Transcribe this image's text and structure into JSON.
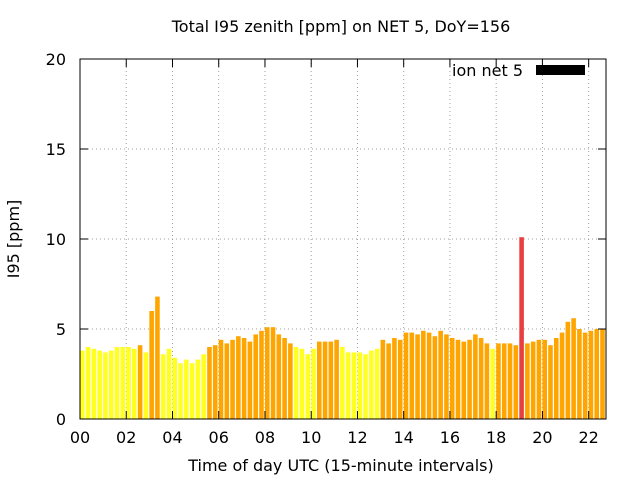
{
  "chart_data": {
    "type": "bar",
    "title": "Total I95 zenith [ppm] on NET 5, DoY=156",
    "xlabel": "Time of day UTC (15-minute intervals)",
    "ylabel": "I95 [ppm]",
    "xlim": [
      0,
      22.75
    ],
    "ylim": [
      0,
      20
    ],
    "x_ticks": [
      {
        "value": 0,
        "label": "00"
      },
      {
        "value": 2,
        "label": "02"
      },
      {
        "value": 4,
        "label": "04"
      },
      {
        "value": 6,
        "label": "06"
      },
      {
        "value": 8,
        "label": "08"
      },
      {
        "value": 10,
        "label": "10"
      },
      {
        "value": 12,
        "label": "12"
      },
      {
        "value": 14,
        "label": "14"
      },
      {
        "value": 16,
        "label": "16"
      },
      {
        "value": 18,
        "label": "18"
      },
      {
        "value": 20,
        "label": "20"
      },
      {
        "value": 22,
        "label": "22"
      }
    ],
    "y_ticks": [
      {
        "value": 0,
        "label": "0"
      },
      {
        "value": 5,
        "label": "5"
      },
      {
        "value": 10,
        "label": "10"
      },
      {
        "value": 15,
        "label": "15"
      },
      {
        "value": 20,
        "label": "20"
      }
    ],
    "grid": true,
    "legend": {
      "label": "ion net 5",
      "color": "#000000",
      "placement": "top-right"
    },
    "colors": {
      "yellow": "#ffff22",
      "orange": "#ffa500",
      "red": "#e84040"
    },
    "bar_interval_hours": 0.25,
    "bars": [
      {
        "x": 0.0,
        "value": 3.8,
        "color": "yellow"
      },
      {
        "x": 0.25,
        "value": 4.0,
        "color": "yellow"
      },
      {
        "x": 0.5,
        "value": 3.9,
        "color": "yellow"
      },
      {
        "x": 0.75,
        "value": 3.8,
        "color": "yellow"
      },
      {
        "x": 1.0,
        "value": 3.7,
        "color": "yellow"
      },
      {
        "x": 1.25,
        "value": 3.8,
        "color": "yellow"
      },
      {
        "x": 1.5,
        "value": 4.0,
        "color": "yellow"
      },
      {
        "x": 1.75,
        "value": 4.0,
        "color": "yellow"
      },
      {
        "x": 2.0,
        "value": 4.0,
        "color": "yellow"
      },
      {
        "x": 2.25,
        "value": 3.9,
        "color": "yellow"
      },
      {
        "x": 2.5,
        "value": 4.1,
        "color": "orange"
      },
      {
        "x": 2.75,
        "value": 3.7,
        "color": "yellow"
      },
      {
        "x": 3.0,
        "value": 6.0,
        "color": "orange"
      },
      {
        "x": 3.25,
        "value": 6.8,
        "color": "orange"
      },
      {
        "x": 3.5,
        "value": 3.6,
        "color": "yellow"
      },
      {
        "x": 3.75,
        "value": 3.9,
        "color": "yellow"
      },
      {
        "x": 4.0,
        "value": 3.4,
        "color": "yellow"
      },
      {
        "x": 4.25,
        "value": 3.1,
        "color": "yellow"
      },
      {
        "x": 4.5,
        "value": 3.3,
        "color": "yellow"
      },
      {
        "x": 4.75,
        "value": 3.1,
        "color": "yellow"
      },
      {
        "x": 5.0,
        "value": 3.3,
        "color": "yellow"
      },
      {
        "x": 5.25,
        "value": 3.6,
        "color": "yellow"
      },
      {
        "x": 5.5,
        "value": 4.0,
        "color": "orange"
      },
      {
        "x": 5.75,
        "value": 4.1,
        "color": "orange"
      },
      {
        "x": 6.0,
        "value": 4.4,
        "color": "orange"
      },
      {
        "x": 6.25,
        "value": 4.2,
        "color": "orange"
      },
      {
        "x": 6.5,
        "value": 4.4,
        "color": "orange"
      },
      {
        "x": 6.75,
        "value": 4.6,
        "color": "orange"
      },
      {
        "x": 7.0,
        "value": 4.5,
        "color": "orange"
      },
      {
        "x": 7.25,
        "value": 4.3,
        "color": "orange"
      },
      {
        "x": 7.5,
        "value": 4.7,
        "color": "orange"
      },
      {
        "x": 7.75,
        "value": 4.9,
        "color": "orange"
      },
      {
        "x": 8.0,
        "value": 5.1,
        "color": "orange"
      },
      {
        "x": 8.25,
        "value": 5.1,
        "color": "orange"
      },
      {
        "x": 8.5,
        "value": 4.7,
        "color": "orange"
      },
      {
        "x": 8.75,
        "value": 4.5,
        "color": "orange"
      },
      {
        "x": 9.0,
        "value": 4.2,
        "color": "orange"
      },
      {
        "x": 9.25,
        "value": 4.0,
        "color": "yellow"
      },
      {
        "x": 9.5,
        "value": 3.9,
        "color": "yellow"
      },
      {
        "x": 9.75,
        "value": 3.6,
        "color": "yellow"
      },
      {
        "x": 10.0,
        "value": 3.9,
        "color": "yellow"
      },
      {
        "x": 10.25,
        "value": 4.3,
        "color": "orange"
      },
      {
        "x": 10.5,
        "value": 4.3,
        "color": "orange"
      },
      {
        "x": 10.75,
        "value": 4.3,
        "color": "orange"
      },
      {
        "x": 11.0,
        "value": 4.4,
        "color": "orange"
      },
      {
        "x": 11.25,
        "value": 4.0,
        "color": "yellow"
      },
      {
        "x": 11.5,
        "value": 3.7,
        "color": "yellow"
      },
      {
        "x": 11.75,
        "value": 3.7,
        "color": "yellow"
      },
      {
        "x": 12.0,
        "value": 3.7,
        "color": "yellow"
      },
      {
        "x": 12.25,
        "value": 3.6,
        "color": "yellow"
      },
      {
        "x": 12.5,
        "value": 3.8,
        "color": "yellow"
      },
      {
        "x": 12.75,
        "value": 3.9,
        "color": "yellow"
      },
      {
        "x": 13.0,
        "value": 4.4,
        "color": "orange"
      },
      {
        "x": 13.25,
        "value": 4.2,
        "color": "orange"
      },
      {
        "x": 13.5,
        "value": 4.5,
        "color": "orange"
      },
      {
        "x": 13.75,
        "value": 4.4,
        "color": "orange"
      },
      {
        "x": 14.0,
        "value": 4.8,
        "color": "orange"
      },
      {
        "x": 14.25,
        "value": 4.8,
        "color": "orange"
      },
      {
        "x": 14.5,
        "value": 4.7,
        "color": "orange"
      },
      {
        "x": 14.75,
        "value": 4.9,
        "color": "orange"
      },
      {
        "x": 15.0,
        "value": 4.8,
        "color": "orange"
      },
      {
        "x": 15.25,
        "value": 4.6,
        "color": "orange"
      },
      {
        "x": 15.5,
        "value": 4.9,
        "color": "orange"
      },
      {
        "x": 15.75,
        "value": 4.7,
        "color": "orange"
      },
      {
        "x": 16.0,
        "value": 4.5,
        "color": "orange"
      },
      {
        "x": 16.25,
        "value": 4.4,
        "color": "orange"
      },
      {
        "x": 16.5,
        "value": 4.3,
        "color": "orange"
      },
      {
        "x": 16.75,
        "value": 4.4,
        "color": "orange"
      },
      {
        "x": 17.0,
        "value": 4.7,
        "color": "orange"
      },
      {
        "x": 17.25,
        "value": 4.5,
        "color": "orange"
      },
      {
        "x": 17.5,
        "value": 4.2,
        "color": "orange"
      },
      {
        "x": 17.75,
        "value": 3.9,
        "color": "yellow"
      },
      {
        "x": 18.0,
        "value": 4.2,
        "color": "orange"
      },
      {
        "x": 18.25,
        "value": 4.2,
        "color": "orange"
      },
      {
        "x": 18.5,
        "value": 4.2,
        "color": "orange"
      },
      {
        "x": 18.75,
        "value": 4.1,
        "color": "orange"
      },
      {
        "x": 19.0,
        "value": 10.1,
        "color": "red"
      },
      {
        "x": 19.25,
        "value": 4.2,
        "color": "orange"
      },
      {
        "x": 19.5,
        "value": 4.3,
        "color": "orange"
      },
      {
        "x": 19.75,
        "value": 4.4,
        "color": "orange"
      },
      {
        "x": 20.0,
        "value": 4.4,
        "color": "orange"
      },
      {
        "x": 20.25,
        "value": 4.1,
        "color": "orange"
      },
      {
        "x": 20.5,
        "value": 4.5,
        "color": "orange"
      },
      {
        "x": 20.75,
        "value": 4.8,
        "color": "orange"
      },
      {
        "x": 21.0,
        "value": 5.4,
        "color": "orange"
      },
      {
        "x": 21.25,
        "value": 5.6,
        "color": "orange"
      },
      {
        "x": 21.5,
        "value": 5.0,
        "color": "orange"
      },
      {
        "x": 21.75,
        "value": 4.8,
        "color": "orange"
      },
      {
        "x": 22.0,
        "value": 4.9,
        "color": "orange"
      },
      {
        "x": 22.25,
        "value": 5.0,
        "color": "orange"
      },
      {
        "x": 22.5,
        "value": 5.0,
        "color": "orange"
      }
    ]
  }
}
